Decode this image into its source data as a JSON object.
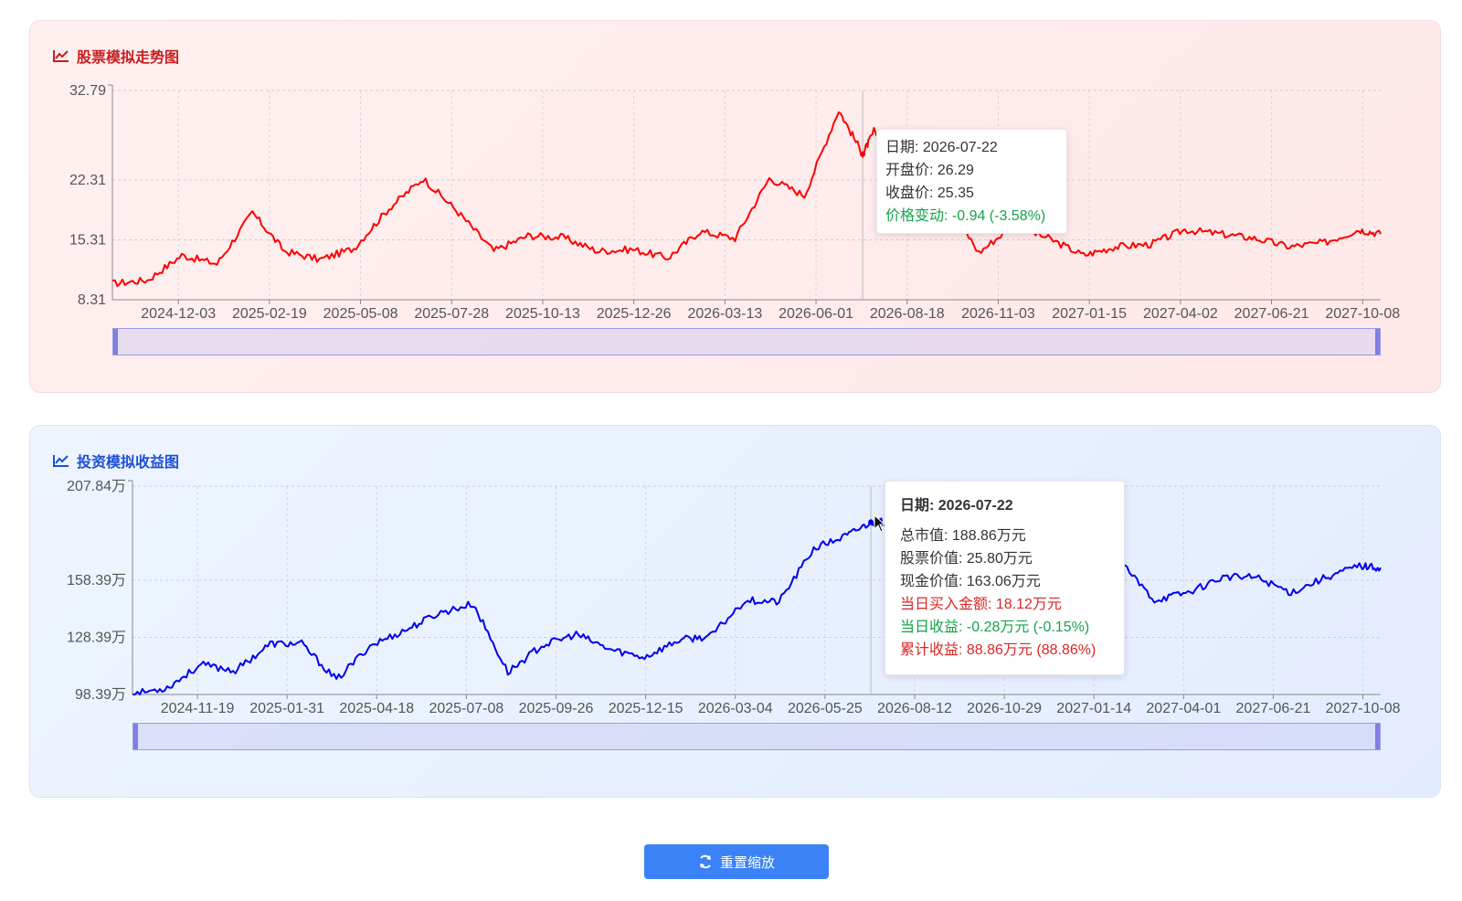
{
  "stock_panel": {
    "title": "股票模拟走势图",
    "icon": "line-chart-icon",
    "accent": "#dc2626"
  },
  "invest_panel": {
    "title": "投资模拟收益图",
    "icon": "line-chart-icon",
    "accent": "#1d4ed8"
  },
  "stock_tooltip": {
    "date": "日期: 2026-07-22",
    "open": "开盘价: 26.29",
    "close": "收盘价: 25.35",
    "change": "价格变动: -0.94 (-3.58%)"
  },
  "invest_tooltip": {
    "date": "日期: 2026-07-22",
    "total": "总市值: 188.86万元",
    "stock_value": "股票价值: 25.80万元",
    "cash_value": "现金价值: 163.06万元",
    "buy_amount": "当日买入金额: 18.12万元",
    "daily_gain": "当日收益: -0.28万元 (-0.15%)",
    "cumulative_gain": "累计收益: 88.86万元 (88.86%)"
  },
  "reset_button": {
    "label": "重置缩放",
    "icon": "refresh-icon"
  },
  "chart_data": [
    {
      "type": "line",
      "title": "股票模拟走势图",
      "color": "#ff0000",
      "y_ticks": [
        "32.79",
        "22.31",
        "15.31",
        "8.31"
      ],
      "y_tick_values": [
        32.79,
        22.31,
        15.31,
        8.31
      ],
      "x_ticks": [
        "2024-12-03",
        "2025-02-19",
        "2025-05-08",
        "2025-07-28",
        "2025-10-13",
        "2025-12-26",
        "2026-03-13",
        "2026-06-01",
        "2026-08-18",
        "2026-11-03",
        "2027-01-15",
        "2027-04-02",
        "2027-06-21",
        "2027-10-08"
      ],
      "x": [
        "2024-10-01",
        "2024-11-01",
        "2024-12-01",
        "2025-01-01",
        "2025-02-01",
        "2025-03-01",
        "2025-04-01",
        "2025-05-01",
        "2025-06-01",
        "2025-07-01",
        "2025-08-01",
        "2025-09-01",
        "2025-10-01",
        "2025-11-01",
        "2025-12-01",
        "2026-01-01",
        "2026-02-01",
        "2026-03-01",
        "2026-04-01",
        "2026-05-01",
        "2026-06-01",
        "2026-07-01",
        "2026-07-22",
        "2026-08-01",
        "2026-09-01",
        "2026-10-01",
        "2026-11-01",
        "2026-12-01",
        "2027-01-01",
        "2027-02-01",
        "2027-03-01",
        "2027-04-01",
        "2027-05-01",
        "2027-06-01",
        "2027-07-01",
        "2027-08-01",
        "2027-09-01",
        "2027-10-01",
        "2027-10-20"
      ],
      "values": [
        10.2,
        10.6,
        13.5,
        12.5,
        18.5,
        14.0,
        13.0,
        14.3,
        19.0,
        22.5,
        18.5,
        14.0,
        15.8,
        15.6,
        14.0,
        14.2,
        13.2,
        16.3,
        15.5,
        22.5,
        20.5,
        30.5,
        25.35,
        28.0,
        24.0,
        20.5,
        13.8,
        17.0,
        15.5,
        13.5,
        14.5,
        14.8,
        16.5,
        16.0,
        15.5,
        14.5,
        15.0,
        16.5,
        16.0
      ],
      "ylim": [
        8.31,
        32.79
      ],
      "grid": true
    },
    {
      "type": "line",
      "title": "投资模拟收益图",
      "color": "#0000ee",
      "y_ticks": [
        "207.84万",
        "158.39万",
        "128.39万",
        "98.39万"
      ],
      "y_tick_values": [
        207.84,
        158.39,
        128.39,
        98.39
      ],
      "x_ticks": [
        "2024-11-19",
        "2025-01-31",
        "2025-04-18",
        "2025-07-08",
        "2025-09-26",
        "2025-12-15",
        "2026-03-04",
        "2026-05-25",
        "2026-08-12",
        "2026-10-29",
        "2027-01-14",
        "2027-04-01",
        "2027-06-21",
        "2027-10-08"
      ],
      "x": [
        "2024-10-01",
        "2024-11-01",
        "2024-12-01",
        "2025-01-01",
        "2025-02-01",
        "2025-03-01",
        "2025-04-01",
        "2025-05-01",
        "2025-06-01",
        "2025-07-01",
        "2025-08-01",
        "2025-09-01",
        "2025-10-01",
        "2025-11-01",
        "2025-12-01",
        "2026-01-01",
        "2026-02-01",
        "2026-03-01",
        "2026-04-01",
        "2026-05-01",
        "2026-06-01",
        "2026-07-01",
        "2026-07-22",
        "2026-08-01",
        "2026-10-01",
        "2026-12-01",
        "2027-01-01",
        "2027-02-01",
        "2027-03-01",
        "2027-04-01",
        "2027-05-01",
        "2027-06-01",
        "2027-07-01",
        "2027-08-01",
        "2027-09-01",
        "2027-10-01",
        "2027-10-20"
      ],
      "values": [
        98.5,
        102,
        114,
        111,
        125,
        125,
        106,
        124,
        132,
        141,
        146,
        110,
        124,
        130,
        122,
        118,
        127,
        129,
        148,
        147,
        175,
        182,
        188.86,
        189,
        186,
        180,
        176,
        172,
        168,
        148,
        152,
        160,
        160,
        152,
        160,
        166,
        165
      ],
      "ylim": [
        98.39,
        207.84
      ],
      "grid": true
    }
  ]
}
